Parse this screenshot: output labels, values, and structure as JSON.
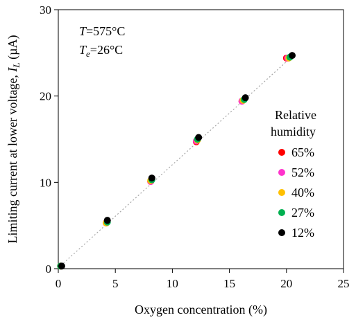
{
  "chart_data": {
    "type": "scatter",
    "xlabel": "Oxygen concentration (%)",
    "ylabel": {
      "prefix": "Limiting current at lower voltage, ",
      "var": "I",
      "sub": "L",
      "unit": " (µA)"
    },
    "xlim": [
      0,
      25
    ],
    "ylim": [
      0,
      30
    ],
    "xticks": [
      0,
      5,
      10,
      15,
      20,
      25
    ],
    "yticks": [
      0,
      10,
      20,
      30
    ],
    "grid": false,
    "annotations": [
      {
        "var": "T",
        "sub": "",
        "value": "=575°C"
      },
      {
        "var": "T",
        "sub": "e",
        "value": "=26°C"
      }
    ],
    "fit_line": {
      "style": "dotted",
      "color": "#a6a6a6",
      "x": [
        0,
        20.6
      ],
      "y": [
        0.1,
        24.7
      ]
    },
    "legend": {
      "title": [
        "Relative",
        "humidity"
      ],
      "position": "right"
    },
    "series": [
      {
        "name": "65%",
        "color": "#ff0000",
        "x": [
          0.2,
          4.2,
          8.1,
          12.1,
          16.1,
          20.0
        ],
        "y": [
          0.3,
          5.3,
          10.1,
          14.7,
          19.4,
          24.4
        ]
      },
      {
        "name": "52%",
        "color": "#ff33cc",
        "x": [
          0.2,
          4.2,
          8.1,
          12.1,
          16.1,
          20.1
        ],
        "y": [
          0.3,
          5.3,
          10.1,
          14.8,
          19.4,
          24.4
        ]
      },
      {
        "name": "40%",
        "color": "#ffc000",
        "x": [
          0.2,
          4.2,
          8.1,
          12.2,
          16.2,
          20.2
        ],
        "y": [
          0.3,
          5.3,
          10.2,
          14.9,
          19.5,
          24.4
        ]
      },
      {
        "name": "27%",
        "color": "#00b050",
        "x": [
          0.2,
          4.3,
          8.2,
          12.2,
          16.3,
          20.3
        ],
        "y": [
          0.3,
          5.4,
          10.3,
          15.0,
          19.6,
          24.5
        ]
      },
      {
        "name": "12%",
        "color": "#000000",
        "x": [
          0.3,
          4.3,
          8.2,
          12.3,
          16.4,
          20.5
        ],
        "y": [
          0.3,
          5.6,
          10.5,
          15.2,
          19.8,
          24.7
        ]
      }
    ]
  }
}
